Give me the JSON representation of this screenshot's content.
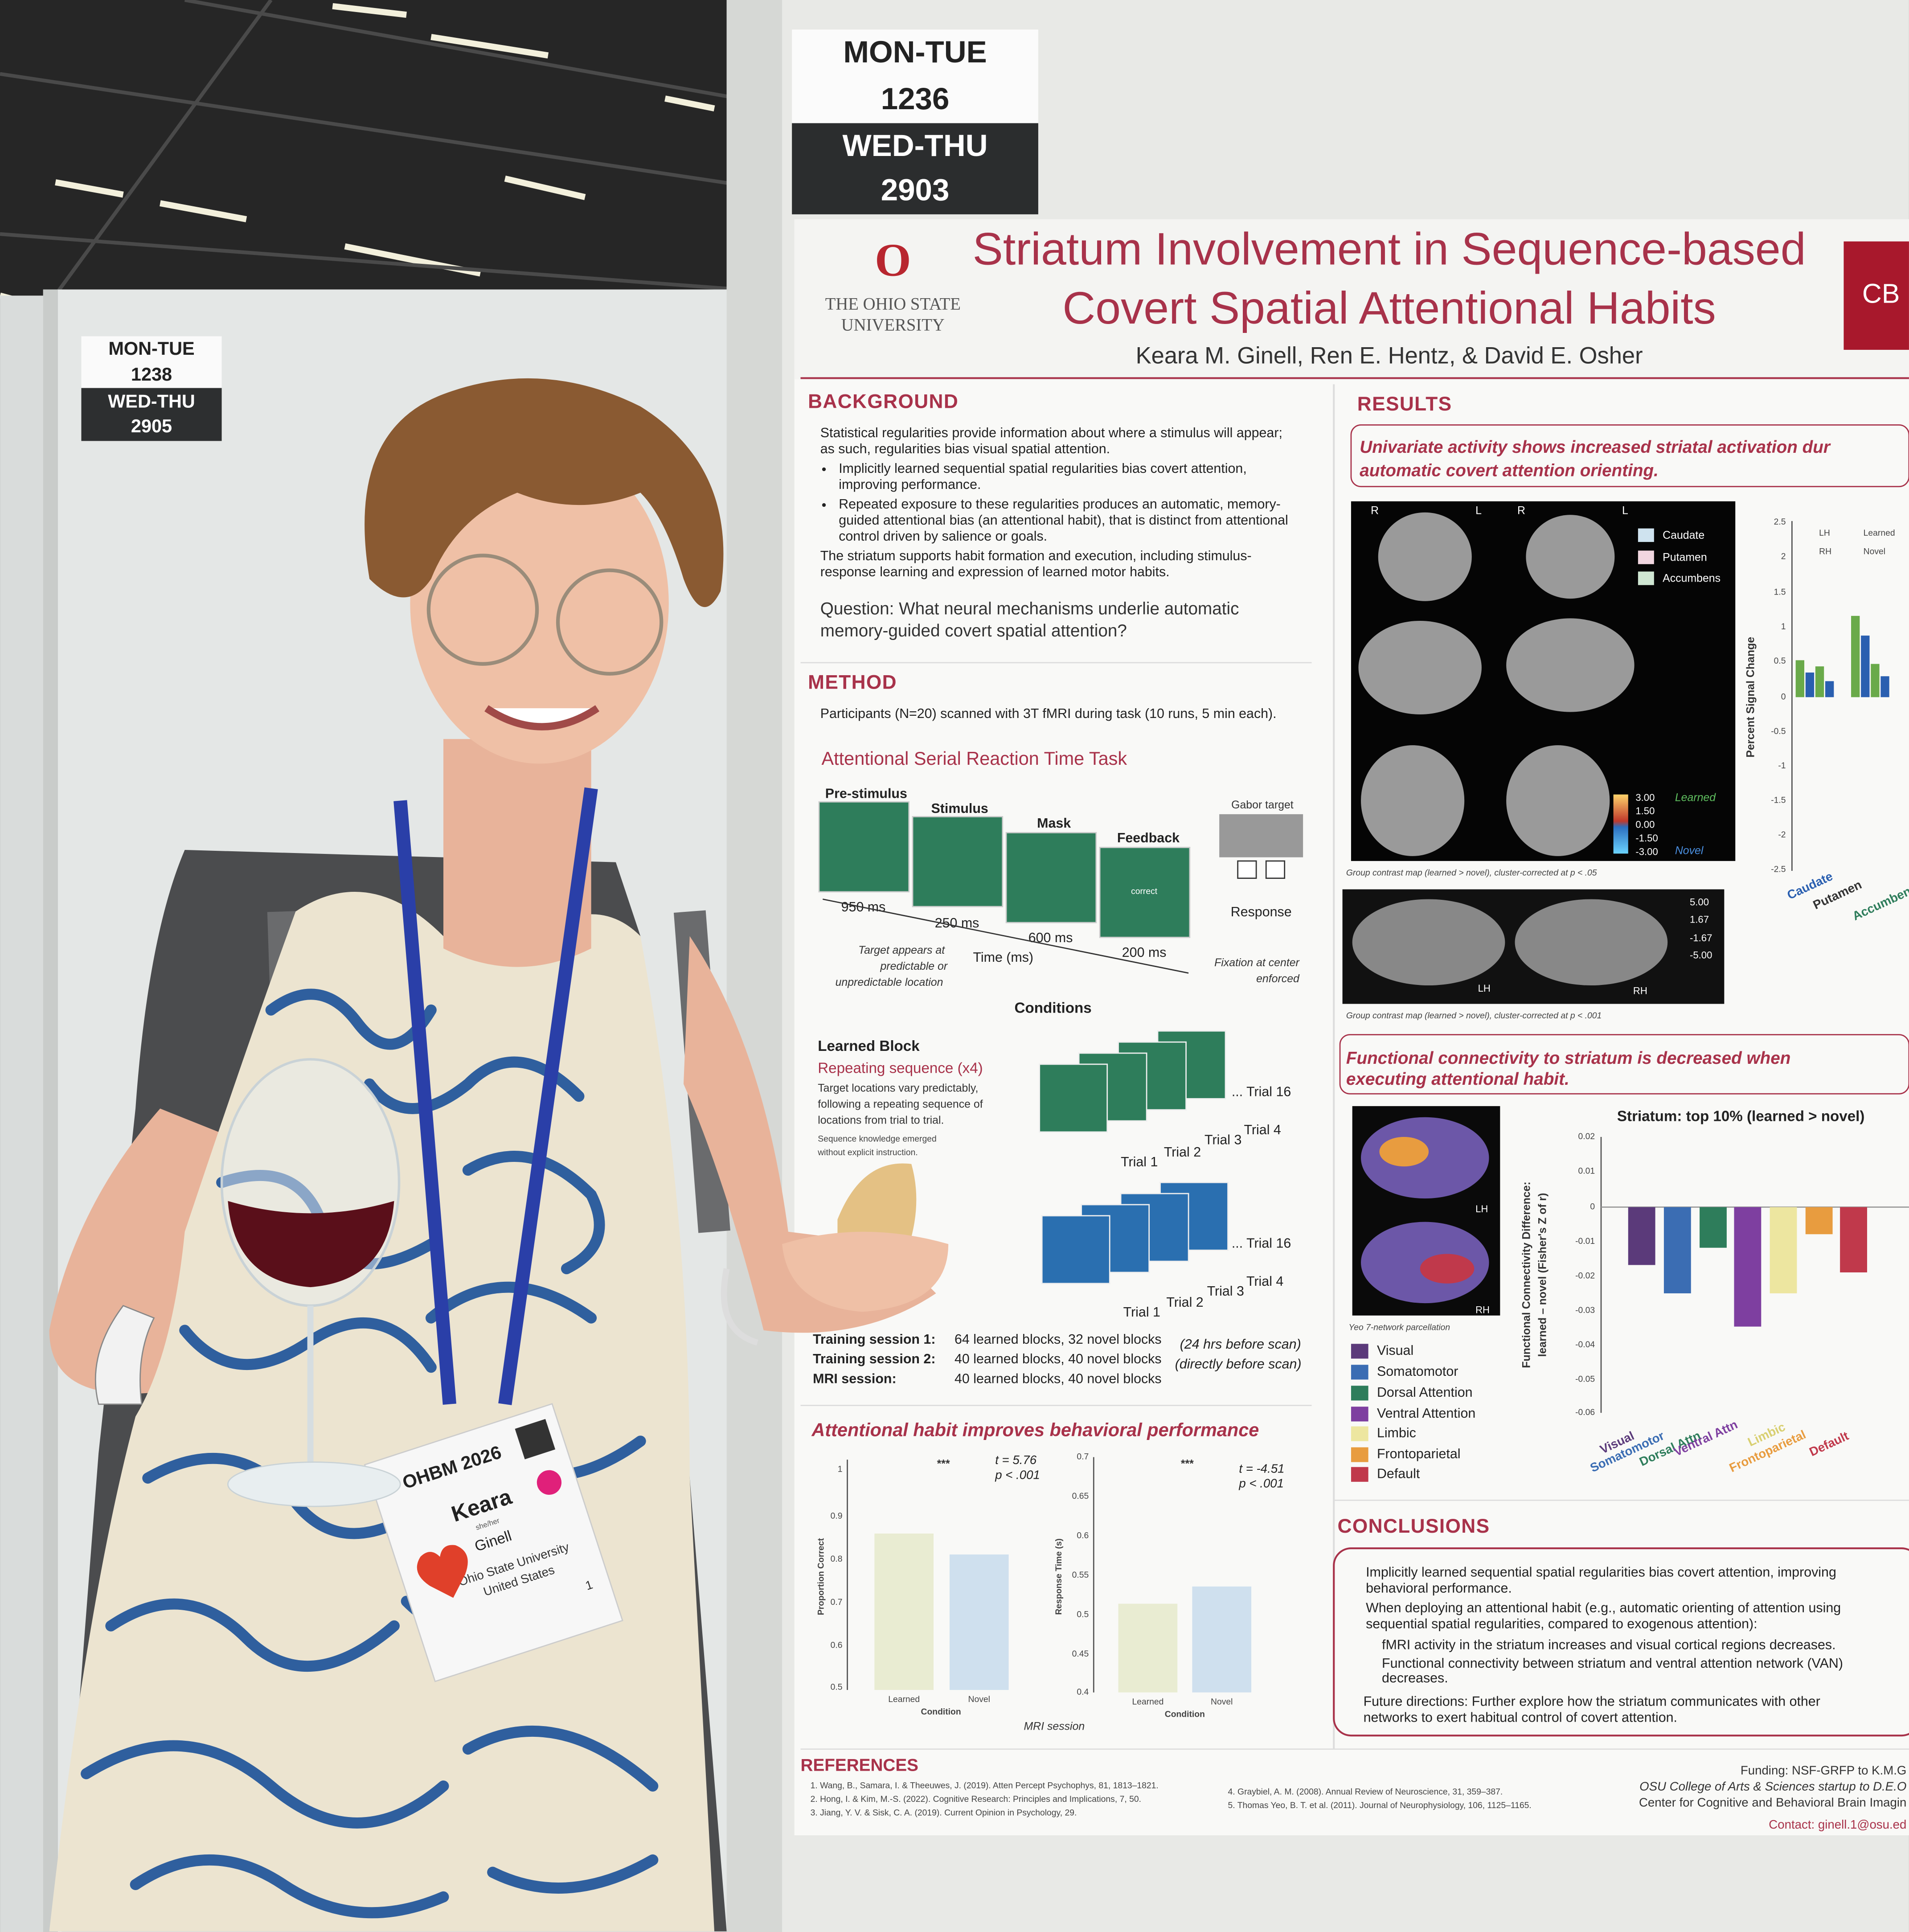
{
  "signs": {
    "main": [
      "MON-TUE",
      "1236",
      "WED-THU",
      "2903"
    ],
    "back": [
      "MON-TUE",
      "1238",
      "WED-THU",
      "2905"
    ]
  },
  "poster": {
    "institution": [
      "THE OHIO STATE",
      "UNIVERSITY"
    ],
    "lab_logo": "CB La",
    "title": [
      "Striatum Involvement in Sequence-based",
      "Covert Spatial Attentional Habits"
    ],
    "authors": "Keara M. Ginell, Ren E. Hentz, & David E. Osher",
    "background": {
      "heading": "BACKGROUND",
      "lines": [
        "Statistical regularities provide information about where a stimulus will appear;",
        "as such, regularities bias visual spatial attention.",
        "Implicitly learned sequential spatial regularities bias covert attention,",
        "improving performance.",
        "Repeated exposure to these regularities produces an automatic, memory-",
        "guided attentional bias (an attentional habit), that is distinct from attentional",
        "control driven by salience or goals.",
        "The striatum supports habit formation and execution, including stimulus-",
        "response learning and expression of learned motor habits."
      ],
      "question": [
        "Question: What neural mechanisms underlie automatic",
        "memory-guided covert spatial attention?"
      ]
    },
    "method": {
      "heading": "METHOD",
      "participants": "Participants (N=20) scanned with 3T fMRI during task (10 runs, 5 min each).",
      "task": "Attentional Serial Reaction Time Task",
      "phases": [
        "Pre-stimulus",
        "Stimulus",
        "Mask",
        "Feedback"
      ],
      "durations": [
        "950 ms",
        "250 ms",
        "600 ms",
        "200 ms"
      ],
      "feedback_word": "correct",
      "gabor": "Gabor target",
      "response": "Response",
      "time_axis": "Time (ms)",
      "target_note": [
        "Target appears at",
        "predictable or",
        "unpredictable location"
      ],
      "fixation_note": [
        "Fixation at center",
        "enforced"
      ],
      "conditions": "Conditions",
      "learned_block": "Learned Block",
      "repeating": "Repeating sequence (x4)",
      "learned_lines": [
        "Target locations vary predictably,",
        "following a repeating sequence of",
        "locations from trial to trial.",
        "Sequence knowledge emerged",
        "without explicit instruction."
      ],
      "trials": [
        "Trial 1",
        "Trial 2",
        "Trial 3",
        "Trial 4",
        "... Trial 16"
      ],
      "sessions": [
        [
          "Training session 1:",
          "64 learned blocks, 32 novel blocks",
          "(24 hrs before scan)"
        ],
        [
          "Training session 2:",
          "40 learned blocks, 40 novel blocks",
          "(directly before scan)"
        ],
        [
          "MRI session:",
          "40 learned blocks, 40 novel blocks"
        ]
      ],
      "behavior_heading": "Attentional habit improves behavioral performance",
      "behavior": {
        "ylabel_acc": "Proportion Correct",
        "ylabel_rt": "Response Time (s)",
        "xlabel": "Condition",
        "conds": [
          "Learned",
          "Novel"
        ],
        "stats_acc": [
          "t = 5.76",
          "p < .001"
        ],
        "stats_rt": [
          "t = -4.51",
          "p < .001"
        ],
        "stars": "***",
        "session": "MRI session",
        "acc_ticks": [
          "1",
          "0.9",
          "0.8",
          "0.7",
          "0.6",
          "0.5"
        ],
        "rt_ticks": [
          "0.7",
          "0.65",
          "0.6",
          "0.55",
          "0.5",
          "0.45",
          "0.4"
        ]
      }
    },
    "results": {
      "heading": "RESULTS",
      "univariate": [
        "Univariate activity shows increased striatal activation dur",
        "automatic covert attention orienting."
      ],
      "roi_legend": [
        "Caudate",
        "Putamen",
        "Accumbens"
      ],
      "hemis": [
        "R",
        "L",
        "R",
        "L"
      ],
      "colorbar": [
        "3.00",
        "1.50",
        "0.00",
        "-1.50",
        "-3.00"
      ],
      "colorbar_labels": [
        "Learned",
        "Novel"
      ],
      "caption1": "Group contrast map (learned > novel), cluster-corrected at p < .05",
      "colorbar2": [
        "5.00",
        "1.67",
        "-1.67",
        "-5.00"
      ],
      "surf_labels": [
        "LH",
        "RH"
      ],
      "caption2": "Group contrast map (learned > novel), cluster-corrected at p < .001",
      "psc_ylabel": "Percent Signal Change",
      "psc_ticks": [
        "2.5",
        "2",
        "1.5",
        "1",
        "0.5",
        "0",
        "-0.5",
        "-1",
        "-1.5",
        "-2",
        "-2.5"
      ],
      "psc_legend": [
        "LH",
        "RH",
        "Learned",
        "Novel"
      ],
      "psc_regions": [
        "Caudate",
        "Putamen",
        "Accumben"
      ],
      "fc_heading": [
        "Functional connectivity to striatum is decreased when",
        "executing attentional habit."
      ],
      "fc_title": "Striatum: top 10% (learned > novel)",
      "fc_ylabel": [
        "Functional Connectivity Difference:",
        "learned – novel (Fisher's Z of r)"
      ],
      "fc_ticks": [
        "0.02",
        "0.01",
        "0",
        "-0.01",
        "-0.02",
        "-0.03",
        "-0.04",
        "-0.05",
        "-0.06"
      ],
      "yeo_caption": "Yeo 7-network parcellation",
      "networks": [
        "Visual",
        "Somatomotor",
        "Dorsal Attention",
        "Ventral Attention",
        "Limbic",
        "Frontoparietal",
        "Default"
      ],
      "network_ticks": [
        "Visual",
        "Somatomotor",
        "Dorsal Attn",
        "Ventral Attn",
        "Limbic",
        "Frontoparietal",
        "Default"
      ]
    },
    "conclusions": {
      "heading": "CONCLUSIONS",
      "lines": [
        "Implicitly learned sequential spatial regularities bias covert attention, improving",
        "behavioral performance.",
        "When deploying an attentional habit (e.g., automatic orienting of attention using",
        "sequential spatial regularities, compared to exogenous attention):",
        "fMRI activity in the striatum increases and visual cortical regions decreases.",
        "Functional connectivity between striatum and ventral attention network (VAN)",
        "decreases.",
        "Future directions: Further explore how the striatum communicates with other",
        "networks to exert habitual control of covert attention."
      ]
    },
    "references": {
      "heading": "REFERENCES",
      "items": [
        "1. Wang, B., Samara, I. & Theeuwes, J. (2019). Atten Percept Psychophys, 81, 1813–1821.",
        "2. Hong, I. & Kim, M.-S. (2022). Cognitive Research: Principles and Implications, 7, 50.",
        "3. Jiang, Y. V. & Sisk, C. A. (2019). Current Opinion in Psychology, 29.",
        "4. Graybiel, A. M. (2008). Annual Review of Neuroscience, 31, 359–387.",
        "5. Thomas Yeo, B. T. et al. (2011). Journal of Neurophysiology, 106, 1125–1165."
      ],
      "funding": [
        "Funding: NSF-GRFP to K.M.G",
        "OSU College of Arts & Sciences startup to D.E.O",
        "Center for Cognitive and Behavioral Brain Imagin",
        "Contact: ginell.1@osu.ed"
      ]
    }
  },
  "badge": {
    "event": "OHBM 2026",
    "name": "Keara",
    "pronouns": "she/her",
    "surname": "Ginell",
    "affiliation": "Ohio State University",
    "country": "United States",
    "number": "1"
  }
}
